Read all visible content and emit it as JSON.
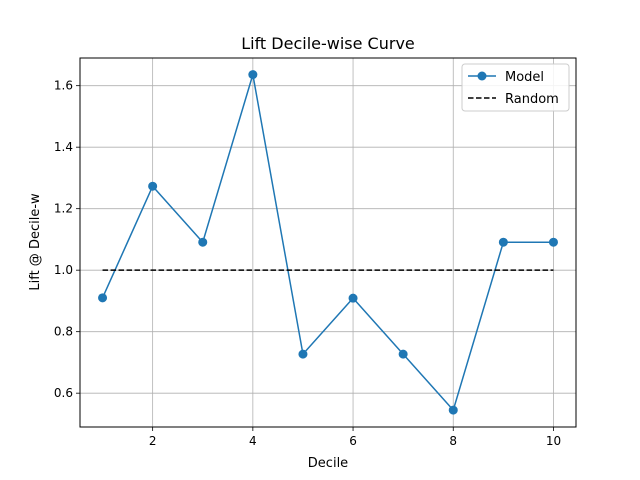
{
  "chart_data": {
    "type": "line",
    "title": "Lift Decile-wise Curve",
    "xlabel": "Decile",
    "ylabel": "Lift @ Decile-w",
    "xlim": [
      0.55,
      10.45
    ],
    "ylim": [
      0.49,
      1.69
    ],
    "xticks": [
      2,
      4,
      6,
      8,
      10
    ],
    "yticks": [
      0.6,
      0.8,
      1.0,
      1.2,
      1.4,
      1.6
    ],
    "xtick_labels": [
      "2",
      "4",
      "6",
      "8",
      "10"
    ],
    "ytick_labels": [
      "0.6",
      "0.8",
      "1.0",
      "1.2",
      "1.4",
      "1.6"
    ],
    "grid": true,
    "legend_position": "top-right",
    "x": [
      1,
      2,
      3,
      4,
      5,
      6,
      7,
      8,
      9,
      10
    ],
    "series": [
      {
        "name": "Model",
        "color": "#1f77b4",
        "style": "solid",
        "marker": "circle",
        "values": [
          0.91,
          1.273,
          1.091,
          1.636,
          0.727,
          0.909,
          0.727,
          0.545,
          1.091,
          1.091
        ]
      },
      {
        "name": "Random",
        "color": "#000000",
        "style": "dashed",
        "marker": "none",
        "values": [
          1,
          1,
          1,
          1,
          1,
          1,
          1,
          1,
          1,
          1
        ]
      }
    ]
  }
}
